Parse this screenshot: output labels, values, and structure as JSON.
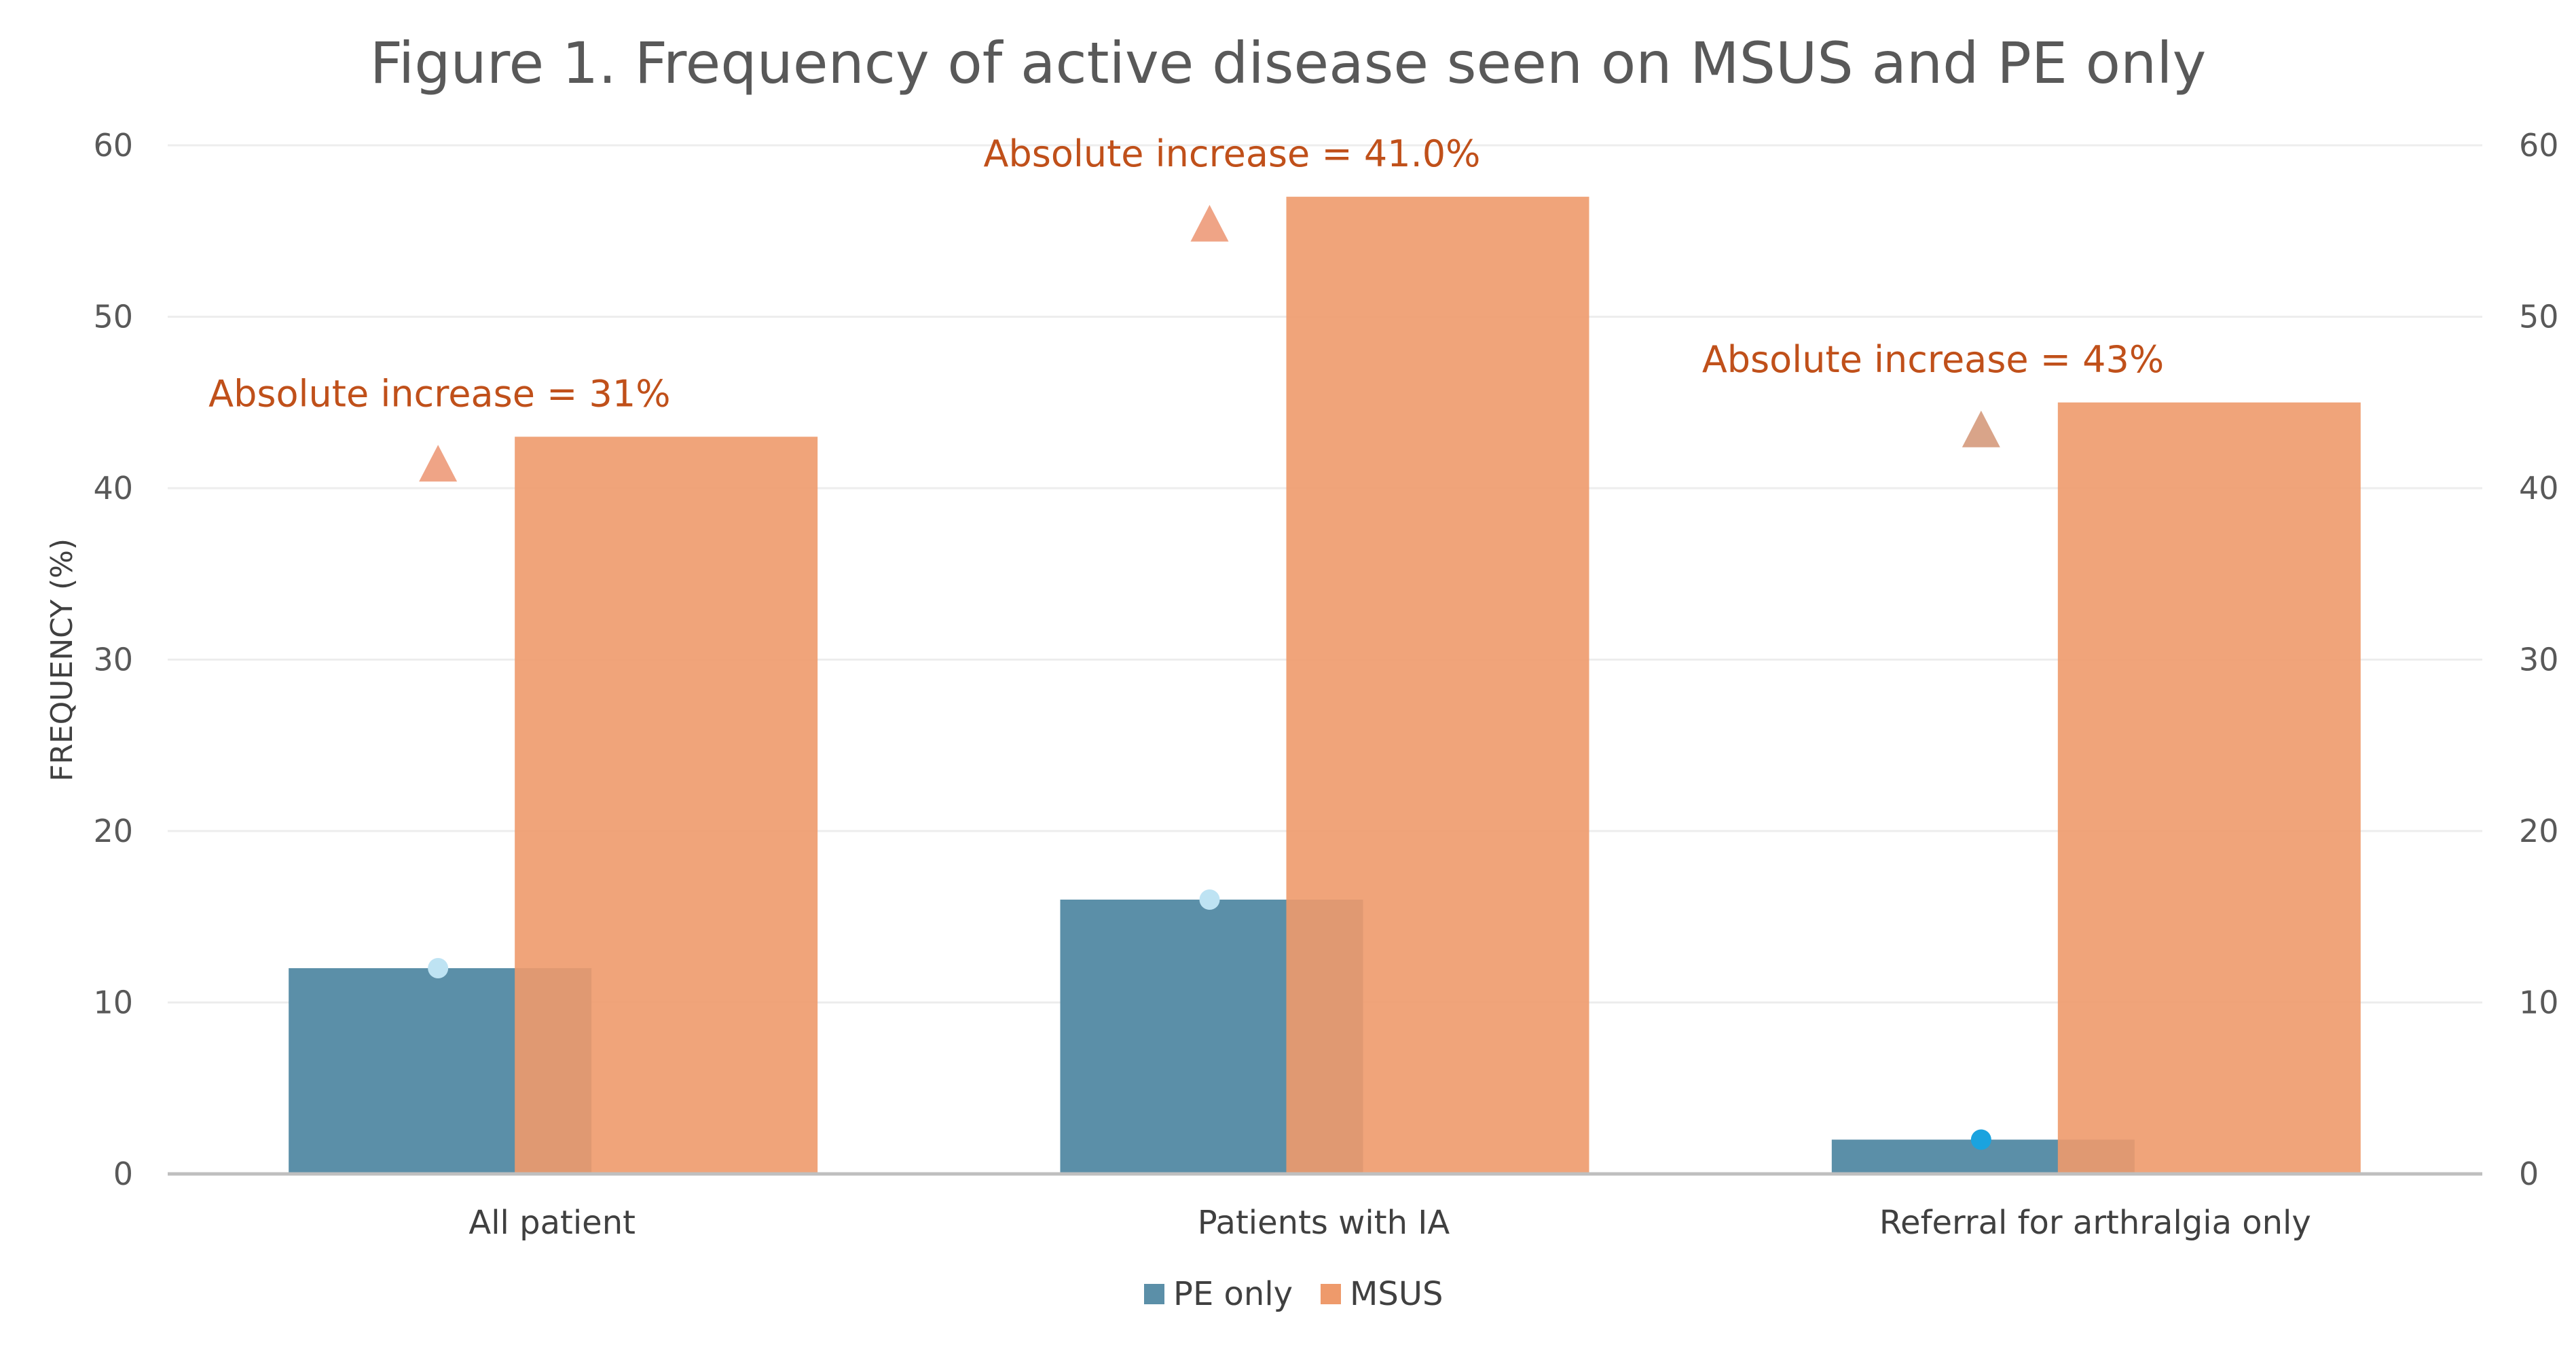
{
  "chart_data": {
    "type": "bar",
    "title": "Figure 1. Frequency of active disease seen on MSUS and PE only",
    "ylabel": "FREQUENCY (%)",
    "ylim": [
      0,
      60
    ],
    "yticks": [
      0,
      10,
      20,
      30,
      40,
      50,
      60
    ],
    "secondary_yticks": [
      0,
      10,
      20,
      30,
      40,
      50,
      60
    ],
    "grid": true,
    "legend_position": "bottom",
    "categories": [
      "All patient",
      "Patients with IA",
      "Referral for arthralgia only"
    ],
    "series": [
      {
        "name": "PE only",
        "values": [
          12,
          16,
          2
        ],
        "color": "#5B8FA8"
      },
      {
        "name": "MSUS",
        "values": [
          43,
          57,
          45
        ],
        "color": "#EE9A6B"
      }
    ],
    "annotations": [
      {
        "text": "Absolute increase = 31%",
        "category": "All patient",
        "from": 12,
        "to": 43
      },
      {
        "text": "Absolute increase = 41.0%",
        "category": "Patients with IA",
        "from": 16,
        "to": 57
      },
      {
        "text": "Absolute increase = 43%",
        "category": "Referral for arthralgia only",
        "from": 2,
        "to": 45
      }
    ]
  }
}
